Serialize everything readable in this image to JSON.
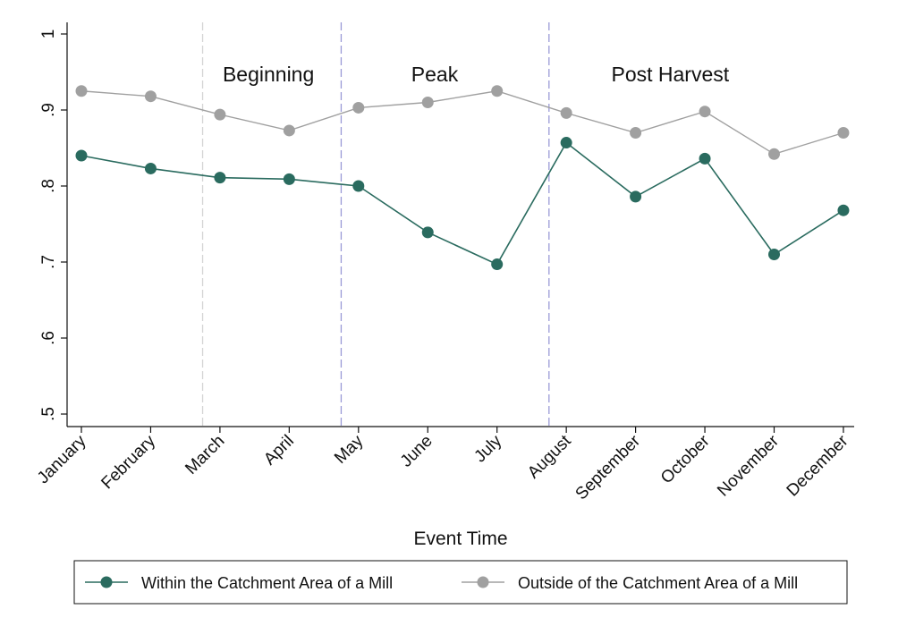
{
  "chart_data": {
    "type": "line",
    "xlabel": "Event Time",
    "ylabel": "",
    "categories": [
      "January",
      "February",
      "March",
      "April",
      "May",
      "June",
      "July",
      "August",
      "September",
      "October",
      "November",
      "December"
    ],
    "ylim": [
      0.5,
      1.0
    ],
    "y_ticks": [
      {
        "value": 0.5,
        "label": ".5"
      },
      {
        "value": 0.6,
        "label": ".6"
      },
      {
        "value": 0.7,
        "label": ".7"
      },
      {
        "value": 0.8,
        "label": ".8"
      },
      {
        "value": 0.9,
        "label": ".9"
      },
      {
        "value": 1.0,
        "label": "1"
      }
    ],
    "grid": false,
    "legend_position": "bottom",
    "series": [
      {
        "name": "Within the Catchment Area of a Mill",
        "color": "#2a6b5f",
        "values": [
          0.84,
          0.823,
          0.811,
          0.809,
          0.8,
          0.739,
          0.697,
          0.857,
          0.786,
          0.836,
          0.71,
          0.768
        ]
      },
      {
        "name": "Outside of the Catchment Area of a Mill",
        "color": "#a0a0a0",
        "values": [
          0.925,
          0.918,
          0.894,
          0.873,
          0.903,
          0.91,
          0.925,
          0.896,
          0.87,
          0.898,
          0.842,
          0.87
        ]
      }
    ],
    "phase_dividers": [
      {
        "after_index": 1.75,
        "color": "#d4d4d4"
      },
      {
        "after_index": 3.75,
        "color": "#9a9ad6"
      },
      {
        "after_index": 6.75,
        "color": "#9a9ad6"
      }
    ],
    "phase_labels": [
      {
        "text": "Beginning",
        "center_index": 2.7
      },
      {
        "text": "Peak",
        "center_index": 5.1
      },
      {
        "text": "Post Harvest",
        "center_index": 8.5
      }
    ]
  }
}
